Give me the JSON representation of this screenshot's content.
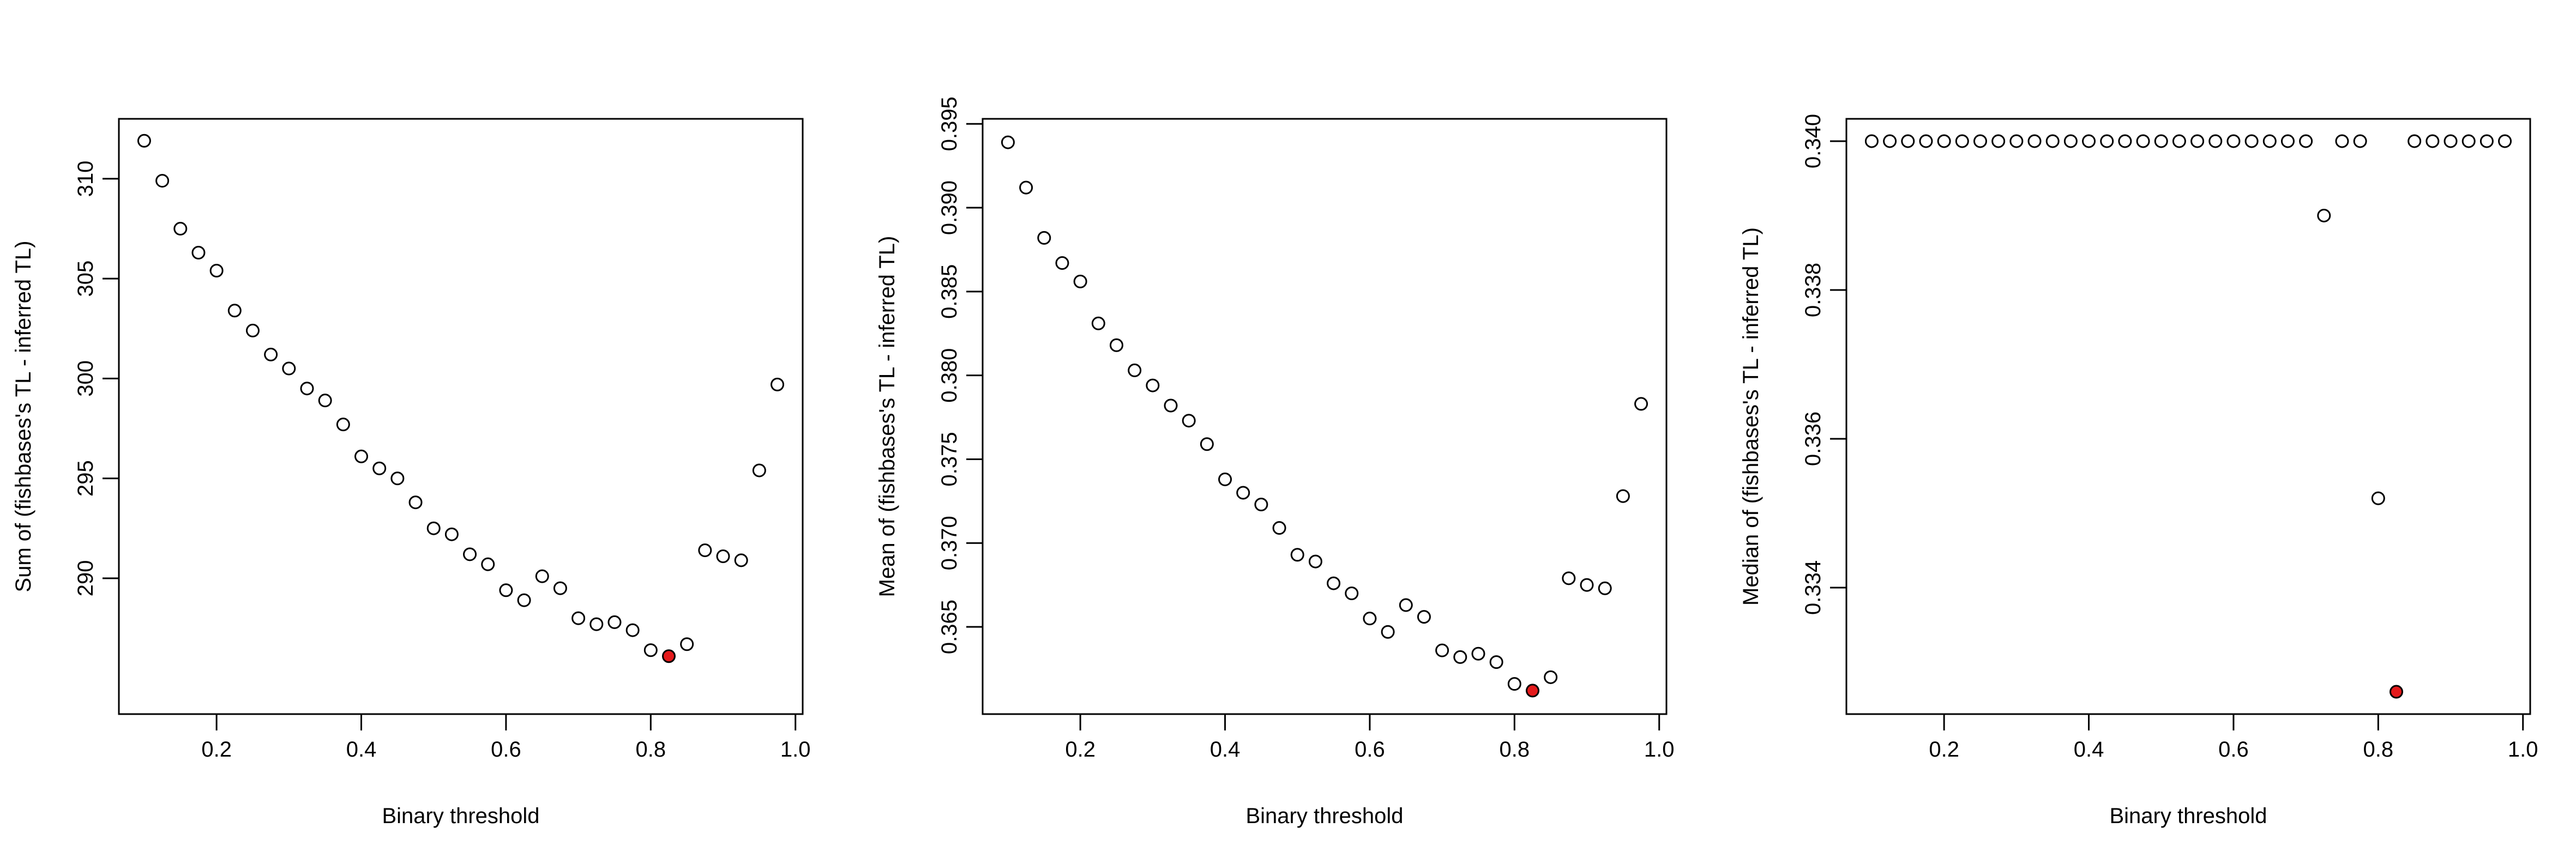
{
  "figure": {
    "colors": {
      "point_fill": "#ffffff",
      "highlight_fill": "#e41a1c",
      "stroke": "#000000"
    }
  },
  "chart_data": [
    {
      "type": "scatter",
      "xlabel": "Binary threshold",
      "ylabel": "Sum of (fishbases's TL - inferred TL)",
      "xlim": [
        0.065,
        1.01
      ],
      "ylim": [
        283.2,
        313.0
      ],
      "x_ticks": [
        "0.2",
        "0.4",
        "0.6",
        "0.8",
        "1.0"
      ],
      "y_ticks": [
        "290",
        "295",
        "300",
        "305",
        "310"
      ],
      "x": [
        0.1,
        0.125,
        0.15,
        0.175,
        0.2,
        0.225,
        0.25,
        0.275,
        0.3,
        0.325,
        0.35,
        0.375,
        0.4,
        0.425,
        0.45,
        0.475,
        0.5,
        0.525,
        0.55,
        0.575,
        0.6,
        0.625,
        0.65,
        0.675,
        0.7,
        0.725,
        0.75,
        0.775,
        0.8,
        0.825,
        0.85,
        0.875,
        0.9,
        0.925,
        0.95,
        0.975
      ],
      "y": [
        311.9,
        309.9,
        307.5,
        306.3,
        305.4,
        303.4,
        302.4,
        301.2,
        300.5,
        299.5,
        298.9,
        297.7,
        296.1,
        295.5,
        295.0,
        293.8,
        292.5,
        292.2,
        291.2,
        290.7,
        289.4,
        288.9,
        290.1,
        289.5,
        288.0,
        287.7,
        287.8,
        287.4,
        286.4,
        286.1,
        286.7,
        291.4,
        291.1,
        290.9,
        295.4,
        299.7
      ],
      "highlight_index": 29,
      "grid": false
    },
    {
      "type": "scatter",
      "xlabel": "Binary threshold",
      "ylabel": "Mean of (fishbases's TL - inferred TL)",
      "xlim": [
        0.065,
        1.01
      ],
      "ylim": [
        0.3598,
        0.3953
      ],
      "x_ticks": [
        "0.2",
        "0.4",
        "0.6",
        "0.8",
        "1.0"
      ],
      "y_ticks": [
        "0.365",
        "0.370",
        "0.375",
        "0.380",
        "0.385",
        "0.390",
        "0.395"
      ],
      "x": [
        0.1,
        0.125,
        0.15,
        0.175,
        0.2,
        0.225,
        0.25,
        0.275,
        0.3,
        0.325,
        0.35,
        0.375,
        0.4,
        0.425,
        0.45,
        0.475,
        0.5,
        0.525,
        0.55,
        0.575,
        0.6,
        0.625,
        0.65,
        0.675,
        0.7,
        0.725,
        0.75,
        0.775,
        0.8,
        0.825,
        0.85,
        0.875,
        0.9,
        0.925,
        0.95,
        0.975
      ],
      "y": [
        0.3939,
        0.3912,
        0.3882,
        0.3867,
        0.3856,
        0.3831,
        0.3818,
        0.3803,
        0.3794,
        0.3782,
        0.3773,
        0.3759,
        0.3738,
        0.373,
        0.3723,
        0.3709,
        0.3693,
        0.3689,
        0.3676,
        0.367,
        0.3655,
        0.3647,
        0.3663,
        0.3656,
        0.3636,
        0.3632,
        0.3634,
        0.3629,
        0.3616,
        0.3612,
        0.362,
        0.3679,
        0.3675,
        0.3673,
        0.3728,
        0.3783
      ],
      "highlight_index": 29,
      "grid": false
    },
    {
      "type": "scatter",
      "xlabel": "Binary threshold",
      "ylabel": "Median of (fishbases's TL - inferred TL)",
      "xlim": [
        0.065,
        1.01
      ],
      "ylim": [
        0.3323,
        0.3403
      ],
      "x_ticks": [
        "0.2",
        "0.4",
        "0.6",
        "0.8",
        "1.0"
      ],
      "y_ticks": [
        "0.334",
        "0.336",
        "0.338",
        "0.340"
      ],
      "x": [
        0.1,
        0.125,
        0.15,
        0.175,
        0.2,
        0.225,
        0.25,
        0.275,
        0.3,
        0.325,
        0.35,
        0.375,
        0.4,
        0.425,
        0.45,
        0.475,
        0.5,
        0.525,
        0.55,
        0.575,
        0.6,
        0.625,
        0.65,
        0.675,
        0.7,
        0.725,
        0.75,
        0.775,
        0.8,
        0.825,
        0.85,
        0.875,
        0.9,
        0.925,
        0.95,
        0.975
      ],
      "y": [
        0.34,
        0.34,
        0.34,
        0.34,
        0.34,
        0.34,
        0.34,
        0.34,
        0.34,
        0.34,
        0.34,
        0.34,
        0.34,
        0.34,
        0.34,
        0.34,
        0.34,
        0.34,
        0.34,
        0.34,
        0.34,
        0.34,
        0.34,
        0.34,
        0.34,
        0.339,
        0.34,
        0.34,
        0.3352,
        0.3326,
        0.34,
        0.34,
        0.34,
        0.34,
        0.34,
        0.34
      ],
      "highlight_index": 29,
      "grid": false
    }
  ]
}
